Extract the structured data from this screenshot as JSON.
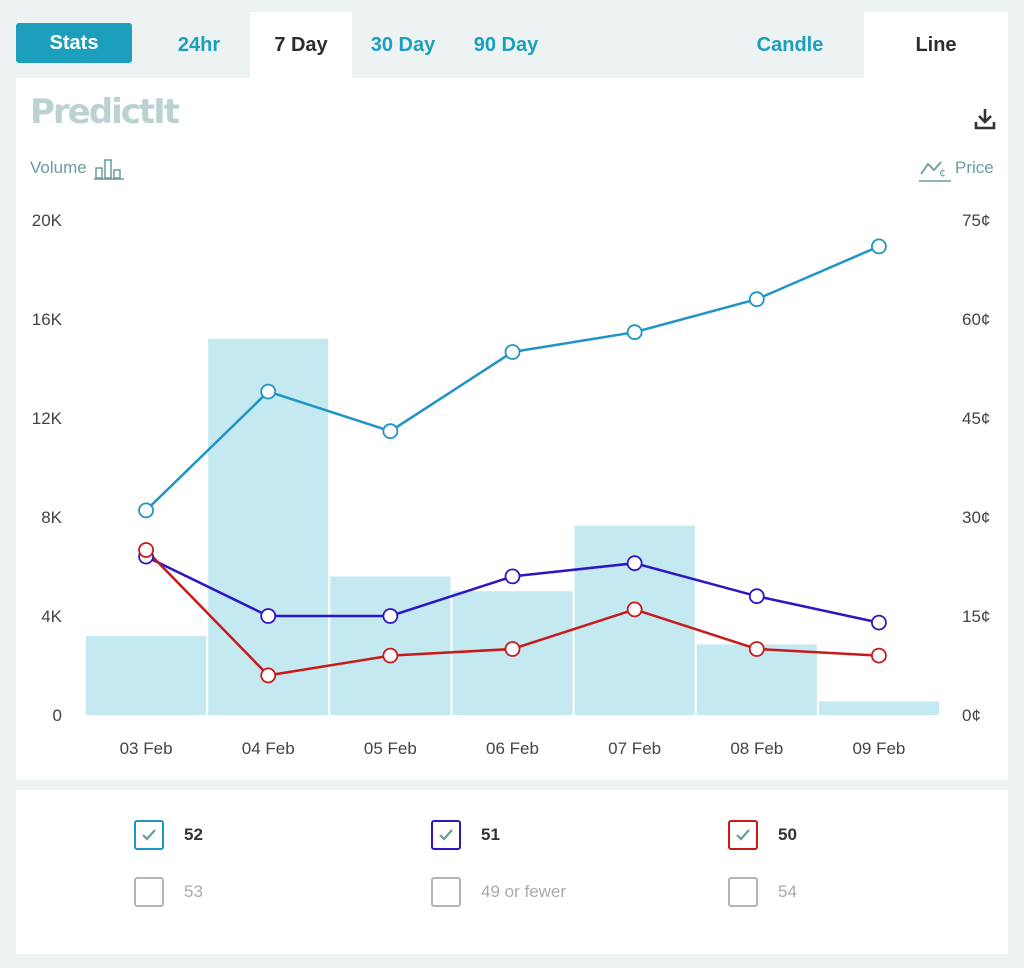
{
  "tabs": {
    "stats": "Stats",
    "range": [
      "24hr",
      "7 Day",
      "30 Day",
      "90 Day"
    ],
    "active_range": "7 Day",
    "views": [
      "Candle",
      "Line"
    ],
    "active_view": "Line"
  },
  "brand": {
    "logo_text": "PredictIt"
  },
  "axes": {
    "left_label": "Volume",
    "right_label": "Price"
  },
  "icons": {
    "download": "download-icon",
    "volume": "bar-chart-icon",
    "price": "price-line-icon",
    "check": "check-icon"
  },
  "chart_data": {
    "type": "bar",
    "categories": [
      "03 Feb",
      "04 Feb",
      "05 Feb",
      "06 Feb",
      "07 Feb",
      "08 Feb",
      "09 Feb"
    ],
    "volume": {
      "values": [
        3200,
        15200,
        5600,
        5000,
        7650,
        2850,
        550
      ],
      "ylim": [
        0,
        20000
      ],
      "ticks": [
        "0",
        "4K",
        "8K",
        "12K",
        "16K",
        "20K"
      ],
      "color": "#c4e9f0"
    },
    "price": {
      "ylim": [
        0,
        75
      ],
      "ticks": [
        "0¢",
        "15¢",
        "30¢",
        "45¢",
        "60¢",
        "75¢"
      ]
    },
    "series": [
      {
        "name": "52",
        "color": "#1f94c6",
        "values": [
          31,
          49,
          43,
          55,
          58,
          63,
          71
        ]
      },
      {
        "name": "51",
        "color": "#2e17c2",
        "values": [
          24,
          15,
          15,
          21,
          23,
          18,
          14
        ]
      },
      {
        "name": "50",
        "color": "#c71a1a",
        "values": [
          25,
          6,
          9,
          10,
          16,
          10,
          9
        ]
      }
    ]
  },
  "legend": [
    {
      "label": "52",
      "checked": true,
      "color": "#1f94c6"
    },
    {
      "label": "51",
      "checked": true,
      "color": "#2e17c2"
    },
    {
      "label": "50",
      "checked": true,
      "color": "#c71a1a"
    },
    {
      "label": "53",
      "checked": false,
      "color": "#b5b5b5"
    },
    {
      "label": "49 or fewer",
      "checked": false,
      "color": "#b5b5b5"
    },
    {
      "label": "54",
      "checked": false,
      "color": "#b5b5b5"
    }
  ]
}
